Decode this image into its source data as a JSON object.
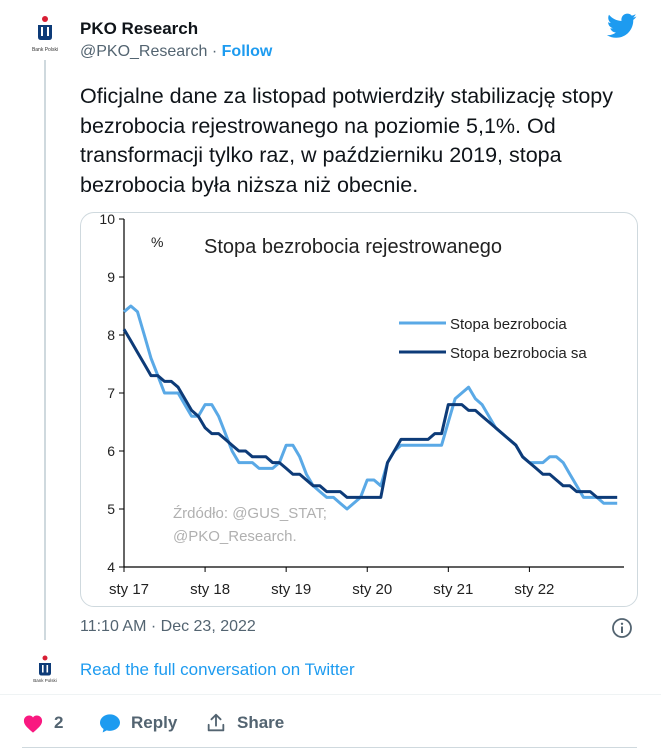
{
  "author": {
    "name": "PKO Research",
    "handle": "@PKO_Research",
    "separator": "·",
    "follow_label": "Follow",
    "avatar_caption": "Bank Polski"
  },
  "tweet": {
    "text": "Oficjalne dane za listopad potwierdziły stabilizację stopy bezrobocia rejestrowanego na poziomie 5,1%. Od transformacji tylko raz, w październiku 2019, stopa bezrobocia była niższa niż obecnie.",
    "timestamp": "11:10 AM · Dec 23, 2022"
  },
  "read_more": "Read the full conversation on Twitter",
  "actions": {
    "likes_count": "2",
    "reply_label": "Reply",
    "share_label": "Share"
  },
  "icons": {
    "twitter": "twitter-bird-icon",
    "info": "info-icon",
    "heart": "heart-icon",
    "reply": "reply-icon",
    "share": "share-icon"
  },
  "colors": {
    "link": "#1d9bf0",
    "heart": "#f91880",
    "series_light": "#5aa9e6",
    "series_dark": "#0d3b78",
    "avatar_red": "#d81e34",
    "avatar_navy": "#0d3b78"
  },
  "chart_data": {
    "type": "line",
    "title": "Stopa bezrobocia rejestrowanego",
    "unit": "%",
    "source_note": [
      "Źrdódło: @GUS_STAT;",
      "@PKO_Research."
    ],
    "x_ticks": [
      "sty 17",
      "sty 18",
      "sty 19",
      "sty 20",
      "sty 21",
      "sty 22"
    ],
    "y_ticks": [
      "10",
      "9",
      "8",
      "7",
      "6",
      "5",
      "4"
    ],
    "ylim": [
      4,
      10
    ],
    "grid": false,
    "legend_position": "top-right",
    "series": [
      {
        "name": "Stopa bezrobocia",
        "color": "#5aa9e6",
        "values": [
          8.4,
          8.5,
          8.4,
          8.0,
          7.6,
          7.3,
          7.0,
          7.0,
          7.0,
          6.8,
          6.6,
          6.6,
          6.8,
          6.8,
          6.6,
          6.3,
          6.0,
          5.8,
          5.8,
          5.8,
          5.7,
          5.7,
          5.7,
          5.8,
          6.1,
          6.1,
          5.9,
          5.6,
          5.4,
          5.3,
          5.2,
          5.2,
          5.1,
          5.0,
          5.1,
          5.2,
          5.5,
          5.5,
          5.4,
          5.8,
          6.0,
          6.1,
          6.1,
          6.1,
          6.1,
          6.1,
          6.1,
          6.1,
          6.5,
          6.9,
          7.0,
          7.1,
          6.9,
          6.8,
          6.6,
          6.4,
          6.3,
          6.2,
          6.1,
          5.9,
          5.8,
          5.8,
          5.8,
          5.9,
          5.9,
          5.8,
          5.6,
          5.4,
          5.2,
          5.2,
          5.2,
          5.1,
          5.1,
          5.1
        ]
      },
      {
        "name": "Stopa bezrobocia sa",
        "color": "#0d3b78",
        "values": [
          8.1,
          7.9,
          7.7,
          7.5,
          7.3,
          7.3,
          7.2,
          7.2,
          7.1,
          6.9,
          6.7,
          6.6,
          6.4,
          6.3,
          6.3,
          6.2,
          6.1,
          6.0,
          6.0,
          5.9,
          5.9,
          5.9,
          5.8,
          5.8,
          5.7,
          5.6,
          5.6,
          5.5,
          5.4,
          5.4,
          5.3,
          5.3,
          5.3,
          5.2,
          5.2,
          5.2,
          5.2,
          5.2,
          5.2,
          5.8,
          6.0,
          6.2,
          6.2,
          6.2,
          6.2,
          6.2,
          6.3,
          6.3,
          6.8,
          6.8,
          6.8,
          6.7,
          6.7,
          6.6,
          6.5,
          6.4,
          6.3,
          6.2,
          6.1,
          5.9,
          5.8,
          5.7,
          5.6,
          5.6,
          5.5,
          5.4,
          5.4,
          5.3,
          5.3,
          5.3,
          5.2,
          5.2,
          5.2,
          5.2
        ]
      }
    ]
  }
}
